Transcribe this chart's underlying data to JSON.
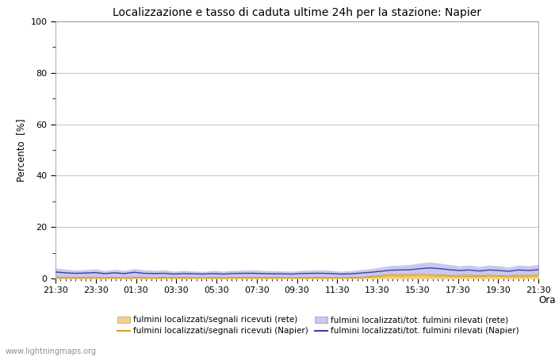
{
  "title": "Localizzazione e tasso di caduta ultime 24h per la stazione: Napier",
  "ylabel": "Percento  [%]",
  "xlabel": "Orario",
  "ylim": [
    0,
    100
  ],
  "yticks_major": [
    0,
    20,
    40,
    60,
    80,
    100
  ],
  "yticks_minor": [
    10,
    30,
    50,
    70,
    90
  ],
  "xtick_labels": [
    "21:30",
    "23:30",
    "01:30",
    "03:30",
    "05:30",
    "07:30",
    "09:30",
    "11:30",
    "13:30",
    "15:30",
    "17:30",
    "19:30",
    "21:30"
  ],
  "background_color": "#ffffff",
  "plot_bg_color": "#ffffff",
  "grid_color": "#c8c8c8",
  "fill_rete_color": "#f0d090",
  "fill_napier_color": "#c8c8f0",
  "line_rete_color": "#d4a020",
  "line_napier_color": "#4040a0",
  "watermark": "www.lightningmaps.org",
  "legend": [
    "fulmini localizzati/segnali ricevuti (rete)",
    "fulmini localizzati/segnali ricevuti (Napier)",
    "fulmini localizzati/tot. fulmini rilevati (rete)",
    "fulmini localizzati/tot. fulmini rilevati (Napier)"
  ],
  "rete_tot": [
    3.8,
    3.4,
    3.0,
    3.2,
    3.5,
    2.8,
    3.3,
    2.9,
    3.6,
    3.1,
    2.9,
    3.1,
    2.6,
    2.9,
    2.7,
    2.5,
    2.9,
    2.6,
    2.9,
    3.0,
    3.1,
    2.9,
    2.8,
    2.7,
    2.6,
    2.9,
    3.0,
    3.1,
    2.9,
    2.6,
    2.8,
    3.2,
    3.6,
    4.2,
    4.8,
    5.0,
    5.2,
    5.8,
    6.2,
    5.7,
    5.2,
    4.7,
    5.0,
    4.4,
    5.0,
    4.7,
    4.2,
    5.0,
    4.7,
    5.2
  ],
  "rete_segnali": [
    0.5,
    0.4,
    0.3,
    0.4,
    0.4,
    0.3,
    0.4,
    0.3,
    0.4,
    0.4,
    0.3,
    0.4,
    0.3,
    0.4,
    0.3,
    0.3,
    0.4,
    0.3,
    0.4,
    0.4,
    0.4,
    0.4,
    0.4,
    0.3,
    0.3,
    0.4,
    0.4,
    0.4,
    0.4,
    0.3,
    0.4,
    0.5,
    0.8,
    1.2,
    1.6,
    1.5,
    1.6,
    1.8,
    1.5,
    1.4,
    1.2,
    1.2,
    1.3,
    1.1,
    1.3,
    1.2,
    1.0,
    1.3,
    1.2,
    1.4
  ],
  "napier_tot": [
    2.5,
    2.2,
    2.0,
    2.1,
    2.3,
    1.9,
    2.2,
    1.9,
    2.4,
    2.0,
    1.9,
    2.0,
    1.7,
    1.9,
    1.8,
    1.7,
    1.9,
    1.7,
    1.9,
    2.0,
    2.0,
    1.9,
    1.8,
    1.8,
    1.7,
    1.9,
    2.0,
    2.0,
    1.9,
    1.7,
    1.8,
    2.1,
    2.4,
    2.8,
    3.2,
    3.3,
    3.4,
    3.8,
    4.1,
    3.8,
    3.4,
    3.1,
    3.3,
    2.9,
    3.3,
    3.1,
    2.8,
    3.3,
    3.1,
    3.4
  ],
  "napier_segnali": [
    0.3,
    0.2,
    0.2,
    0.2,
    0.3,
    0.2,
    0.2,
    0.2,
    0.3,
    0.2,
    0.2,
    0.2,
    0.2,
    0.2,
    0.2,
    0.2,
    0.2,
    0.2,
    0.2,
    0.2,
    0.2,
    0.2,
    0.2,
    0.2,
    0.2,
    0.2,
    0.2,
    0.2,
    0.2,
    0.2,
    0.2,
    0.3,
    0.5,
    0.7,
    1.0,
    0.9,
    1.0,
    1.1,
    0.9,
    0.9,
    0.8,
    0.7,
    0.8,
    0.7,
    0.8,
    0.8,
    0.6,
    0.8,
    0.7,
    0.9
  ]
}
